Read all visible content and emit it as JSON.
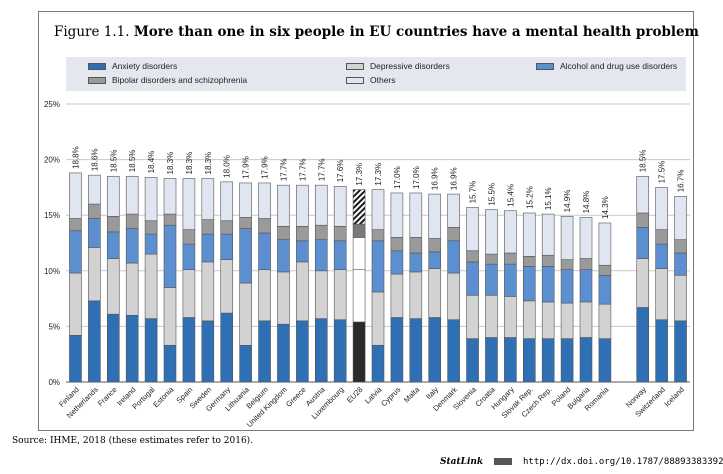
{
  "figure": {
    "number": "Figure 1.1.",
    "title": "More than one in six people in EU countries have a mental health problem"
  },
  "legend": [
    {
      "label": "Anxiety disorders",
      "color": "#2f6fb4"
    },
    {
      "label": "Depressive disorders",
      "color": "#d2d2d2"
    },
    {
      "label": "Alcohol and drug use disorders",
      "color": "#5b8fd0"
    },
    {
      "label": "Bipolar disorders and schizophrenia",
      "color": "#9a9a9a"
    },
    {
      "label": "Others",
      "color": "#dfe6f2"
    }
  ],
  "source": "Source: IHME, 2018 (these estimates refer to 2016).",
  "statlink": {
    "label": "StatLink",
    "url": "http://dx.doi.org/10.1787/888933833920"
  },
  "chart_data": {
    "type": "bar",
    "stacked": true,
    "ylim": [
      0,
      25
    ],
    "yticks": [
      "0%",
      "5%",
      "10%",
      "15%",
      "20%",
      "25%"
    ],
    "grid": true,
    "categories": [
      "Finland",
      "Netherlands",
      "France",
      "Ireland",
      "Portugal",
      "Estonia",
      "Spain",
      "Sweden",
      "Germany",
      "Lithuania",
      "Belgium",
      "United Kingdom",
      "Greece",
      "Austria",
      "Luxembourg",
      "EU28",
      "Latvia",
      "Cyprus",
      "Malta",
      "Italy",
      "Denmark",
      "Slovenia",
      "Croatia",
      "Hungary",
      "Slovak Rep.",
      "Czech Rep.",
      "Poland",
      "Bulgaria",
      "Romania",
      "",
      "Norway",
      "Switzerland",
      "Iceland"
    ],
    "totals_labels": [
      "18.8%",
      "18.6%",
      "18.5%",
      "18.5%",
      "18.4%",
      "18.3%",
      "18.3%",
      "18.3%",
      "18.0%",
      "17.9%",
      "17.9%",
      "17.7%",
      "17.7%",
      "17.7%",
      "17.6%",
      "17.3%",
      "17.3%",
      "17.0%",
      "17.0%",
      "16.9%",
      "16.9%",
      "15.7%",
      "15.5%",
      "15.4%",
      "15.2%",
      "15.1%",
      "14.9%",
      "14.8%",
      "14.3%",
      "",
      "18.5%",
      "17.5%",
      "16.7%"
    ],
    "series": [
      {
        "name": "Anxiety disorders",
        "values": [
          4.2,
          7.3,
          6.1,
          6.0,
          5.7,
          3.3,
          5.8,
          5.5,
          6.2,
          3.3,
          5.5,
          5.2,
          5.5,
          5.7,
          5.6,
          5.4,
          3.3,
          5.8,
          5.7,
          5.8,
          5.6,
          3.9,
          4.0,
          4.0,
          3.9,
          3.9,
          3.9,
          4.0,
          3.9,
          null,
          6.7,
          5.6,
          5.5
        ]
      },
      {
        "name": "Depressive disorders",
        "values": [
          5.6,
          4.8,
          5.0,
          4.7,
          5.8,
          5.2,
          4.3,
          5.3,
          4.8,
          5.6,
          4.6,
          4.7,
          5.3,
          4.3,
          4.5,
          4.7,
          4.8,
          3.9,
          4.2,
          4.4,
          4.2,
          3.9,
          3.8,
          3.7,
          3.4,
          3.3,
          3.2,
          3.2,
          3.1,
          null,
          4.4,
          4.6,
          4.1
        ]
      },
      {
        "name": "Alcohol and drug use disorders",
        "values": [
          3.8,
          2.6,
          2.4,
          3.1,
          1.8,
          5.6,
          2.3,
          2.5,
          2.3,
          4.9,
          3.3,
          2.9,
          1.9,
          2.8,
          2.6,
          2.9,
          4.6,
          2.1,
          1.7,
          1.5,
          2.9,
          3.0,
          2.8,
          2.9,
          3.1,
          3.2,
          3.0,
          2.9,
          2.6,
          null,
          2.8,
          2.2,
          2.0
        ]
      },
      {
        "name": "Bipolar disorders and schizophrenia",
        "values": [
          1.1,
          1.3,
          1.4,
          1.3,
          1.2,
          1.0,
          1.3,
          1.3,
          1.2,
          1.0,
          1.3,
          1.2,
          1.3,
          1.3,
          1.3,
          1.2,
          1.0,
          1.2,
          1.4,
          1.2,
          1.2,
          1.0,
          0.9,
          1.0,
          0.9,
          1.0,
          0.9,
          1.0,
          0.9,
          null,
          1.3,
          1.3,
          1.2
        ]
      },
      {
        "name": "Others",
        "values": [
          4.1,
          2.6,
          3.6,
          3.4,
          3.9,
          3.2,
          4.6,
          3.7,
          3.5,
          3.1,
          3.2,
          3.7,
          3.7,
          3.6,
          3.6,
          3.1,
          3.6,
          4.0,
          4.0,
          4.0,
          3.0,
          3.9,
          4.0,
          3.8,
          3.9,
          3.7,
          3.9,
          3.7,
          3.8,
          null,
          3.3,
          3.8,
          3.9
        ]
      }
    ],
    "highlight_category": "EU28"
  }
}
